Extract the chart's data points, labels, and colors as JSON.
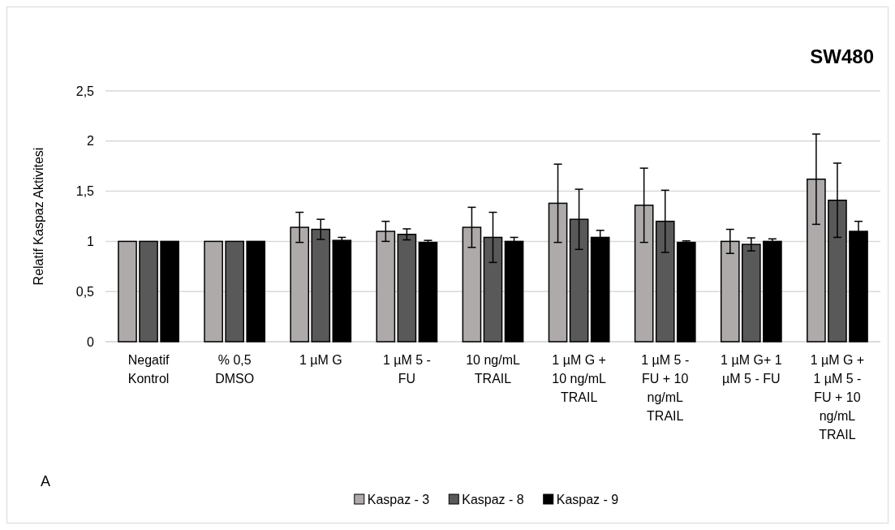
{
  "chart_data": {
    "type": "bar",
    "title": "SW480",
    "ylabel": "Relatif Kaspaz Aktivitesi",
    "categories": [
      "Negatif Kontrol",
      "% 0,5 DMSO",
      "1 µM G",
      "1 µM 5 - FU",
      "10 ng/mL TRAIL",
      "1 µM G + 10 ng/mL TRAIL",
      "1 µM 5 - FU + 10 ng/mL TRAIL",
      "1 µM G+ 1 µM 5 - FU",
      "1 µM G + 1 µM 5 - FU + 10 ng/mL TRAIL"
    ],
    "series": [
      {
        "name": "Kaspaz - 3",
        "color": "#aeaaaa",
        "values": [
          1,
          1,
          1.14,
          1.1,
          1.14,
          1.38,
          1.36,
          1.0,
          1.62
        ],
        "errors": [
          null,
          null,
          0.15,
          0.1,
          0.2,
          0.39,
          0.37,
          0.12,
          0.45
        ]
      },
      {
        "name": "Kaspaz - 8",
        "color": "#595959",
        "values": [
          1,
          1,
          1.12,
          1.07,
          1.04,
          1.22,
          1.2,
          0.97,
          1.41
        ],
        "errors": [
          null,
          null,
          0.1,
          0.055,
          0.25,
          0.3,
          0.31,
          0.065,
          0.37
        ]
      },
      {
        "name": "Kaspaz - 9",
        "color": "#000000",
        "values": [
          1,
          1,
          1.01,
          0.99,
          1.0,
          1.04,
          0.99,
          1.0,
          1.1
        ],
        "errors": [
          null,
          null,
          0.03,
          0.02,
          0.04,
          0.07,
          0.015,
          0.025,
          0.1
        ]
      }
    ],
    "ylim": [
      0,
      2.5
    ],
    "yticks": [
      {
        "value": 0,
        "label": "0"
      },
      {
        "value": 0.5,
        "label": "0,5"
      },
      {
        "value": 1,
        "label": "1"
      },
      {
        "value": 1.5,
        "label": "1,5"
      },
      {
        "value": 2,
        "label": "2"
      },
      {
        "value": 2.5,
        "label": "2,5"
      }
    ],
    "grid": "y",
    "legend": "bottom",
    "annotations": [
      "A"
    ]
  }
}
